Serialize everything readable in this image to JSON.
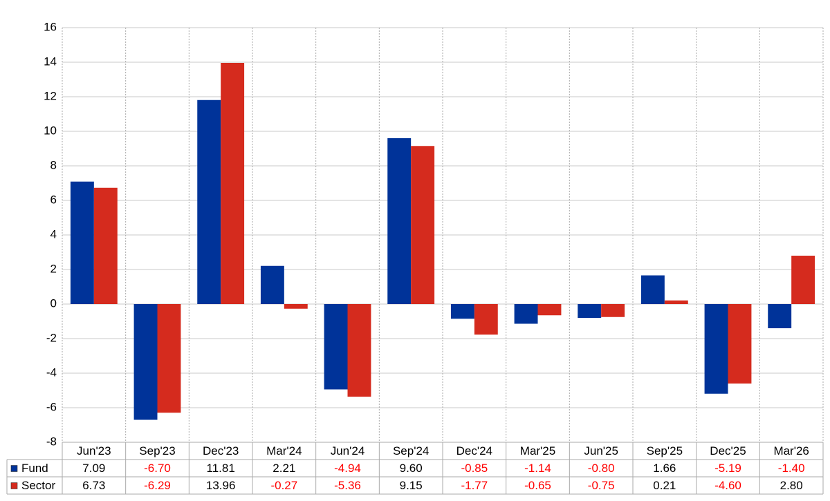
{
  "chart_data": {
    "type": "bar",
    "categories": [
      "Jun'23",
      "Sep'23",
      "Dec'23",
      "Mar'24",
      "Jun'24",
      "Sep'24",
      "Dec'24",
      "Mar'25",
      "Jun'25",
      "Sep'25",
      "Dec'25",
      "Mar'26"
    ],
    "series": [
      {
        "name": "Fund",
        "color": "#003399",
        "values": [
          7.09,
          -6.7,
          11.81,
          2.21,
          -4.94,
          9.6,
          -0.85,
          -1.14,
          -0.8,
          1.66,
          -5.19,
          -1.4
        ],
        "value_labels": [
          "7.09",
          "-6.70",
          "11.81",
          "2.21",
          "-4.94",
          "9.60",
          "-0.85",
          "-1.14",
          "-0.80",
          "1.66",
          "-5.19",
          "-1.40"
        ]
      },
      {
        "name": "Sector",
        "color": "#d52b1e",
        "values": [
          6.73,
          -6.29,
          13.96,
          -0.27,
          -5.36,
          9.15,
          -1.77,
          -0.65,
          -0.75,
          0.21,
          -4.6,
          2.8
        ],
        "value_labels": [
          "6.73",
          "-6.29",
          "13.96",
          "-0.27",
          "-5.36",
          "9.15",
          "-1.77",
          "-0.65",
          "-0.75",
          "0.21",
          "-4.60",
          "2.80"
        ]
      }
    ],
    "ylim": [
      -8,
      16
    ],
    "yticks": [
      -8,
      -6,
      -4,
      -2,
      0,
      2,
      4,
      6,
      8,
      10,
      12,
      14,
      16
    ],
    "grid": true,
    "negative_label_color": "#ff0000"
  }
}
